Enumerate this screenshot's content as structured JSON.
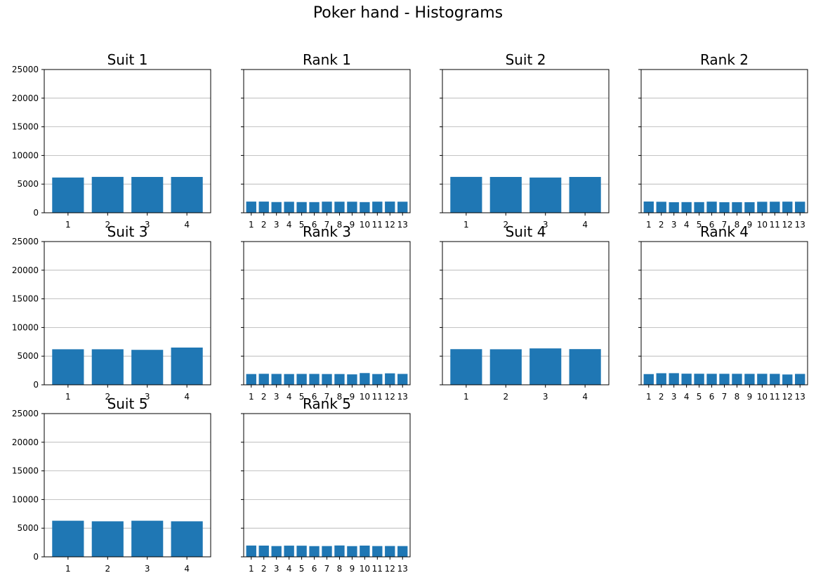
{
  "figure_title": "Poker hand - Histograms",
  "colors": {
    "bar": "#1f77b4",
    "grid": "#b0b0b0",
    "axis": "#000000"
  },
  "chart_data": [
    {
      "type": "bar",
      "title": "Suit 1",
      "categories": [
        "1",
        "2",
        "3",
        "4"
      ],
      "values": [
        6150,
        6260,
        6250,
        6250
      ],
      "ylim": [
        0,
        25000
      ],
      "yticks": [
        0,
        5000,
        10000,
        15000,
        20000,
        25000
      ],
      "grid": "y"
    },
    {
      "type": "bar",
      "title": "Rank 1",
      "categories": [
        "1",
        "2",
        "3",
        "4",
        "5",
        "6",
        "7",
        "8",
        "9",
        "10",
        "11",
        "12",
        "13"
      ],
      "values": [
        1950,
        1950,
        1870,
        1920,
        1870,
        1860,
        1940,
        1930,
        1930,
        1860,
        1940,
        1950,
        1930
      ],
      "ylim": [
        0,
        25000
      ],
      "yticks": [
        0,
        5000,
        10000,
        15000,
        20000,
        25000
      ],
      "grid": "y"
    },
    {
      "type": "bar",
      "title": "Suit 2",
      "categories": [
        "1",
        "2",
        "3",
        "4"
      ],
      "values": [
        6260,
        6250,
        6150,
        6250
      ],
      "ylim": [
        0,
        25000
      ],
      "yticks": [
        0,
        5000,
        10000,
        15000,
        20000,
        25000
      ],
      "grid": "y"
    },
    {
      "type": "bar",
      "title": "Rank 2",
      "categories": [
        "1",
        "2",
        "3",
        "4",
        "5",
        "6",
        "7",
        "8",
        "9",
        "10",
        "11",
        "12",
        "13"
      ],
      "values": [
        1960,
        1920,
        1840,
        1860,
        1860,
        1940,
        1840,
        1850,
        1850,
        1920,
        1930,
        1940,
        1930
      ],
      "ylim": [
        0,
        25000
      ],
      "yticks": [
        0,
        5000,
        10000,
        15000,
        20000,
        25000
      ],
      "grid": "y"
    },
    {
      "type": "bar",
      "title": "Suit 3",
      "categories": [
        "1",
        "2",
        "3",
        "4"
      ],
      "values": [
        6200,
        6200,
        6100,
        6500
      ],
      "ylim": [
        0,
        25000
      ],
      "yticks": [
        0,
        5000,
        10000,
        15000,
        20000,
        25000
      ],
      "grid": "y"
    },
    {
      "type": "bar",
      "title": "Rank 3",
      "categories": [
        "1",
        "2",
        "3",
        "4",
        "5",
        "6",
        "7",
        "8",
        "9",
        "10",
        "11",
        "12",
        "13"
      ],
      "values": [
        1880,
        1920,
        1900,
        1880,
        1900,
        1900,
        1880,
        1880,
        1820,
        2050,
        1880,
        2000,
        1900
      ],
      "ylim": [
        0,
        25000
      ],
      "yticks": [
        0,
        5000,
        10000,
        15000,
        20000,
        25000
      ],
      "grid": "y"
    },
    {
      "type": "bar",
      "title": "Suit 4",
      "categories": [
        "1",
        "2",
        "3",
        "4"
      ],
      "values": [
        6220,
        6200,
        6350,
        6230
      ],
      "ylim": [
        0,
        25000
      ],
      "yticks": [
        0,
        5000,
        10000,
        15000,
        20000,
        25000
      ],
      "grid": "y"
    },
    {
      "type": "bar",
      "title": "Rank 4",
      "categories": [
        "1",
        "2",
        "3",
        "4",
        "5",
        "6",
        "7",
        "8",
        "9",
        "10",
        "11",
        "12",
        "13"
      ],
      "values": [
        1870,
        2020,
        2030,
        1940,
        1930,
        1920,
        1920,
        1920,
        1910,
        1920,
        1910,
        1800,
        1900
      ],
      "ylim": [
        0,
        25000
      ],
      "yticks": [
        0,
        5000,
        10000,
        15000,
        20000,
        25000
      ],
      "grid": "y"
    },
    {
      "type": "bar",
      "title": "Suit 5",
      "categories": [
        "1",
        "2",
        "3",
        "4"
      ],
      "values": [
        6300,
        6200,
        6300,
        6200
      ],
      "ylim": [
        0,
        25000
      ],
      "yticks": [
        0,
        5000,
        10000,
        15000,
        20000,
        25000
      ],
      "grid": "y"
    },
    {
      "type": "bar",
      "title": "Rank 5",
      "categories": [
        "1",
        "2",
        "3",
        "4",
        "5",
        "6",
        "7",
        "8",
        "9",
        "10",
        "11",
        "12",
        "13"
      ],
      "values": [
        1970,
        1960,
        1880,
        1950,
        1940,
        1870,
        1880,
        1980,
        1870,
        1960,
        1880,
        1890,
        1880
      ],
      "ylim": [
        0,
        25000
      ],
      "yticks": [
        0,
        5000,
        10000,
        15000,
        20000,
        25000
      ],
      "grid": "y"
    }
  ]
}
